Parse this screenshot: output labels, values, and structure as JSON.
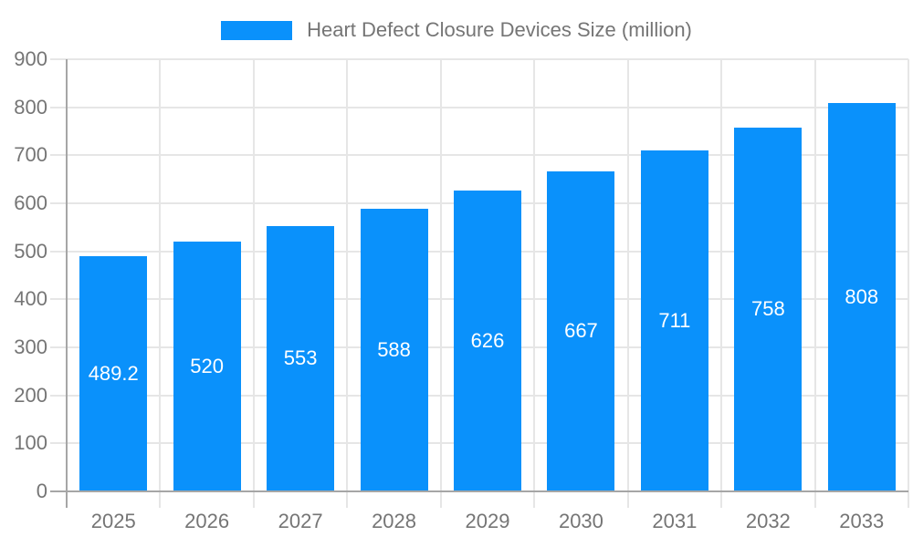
{
  "chart_data": {
    "type": "bar",
    "title": "Heart Defect Closure Devices Size (million)",
    "categories": [
      "2025",
      "2026",
      "2027",
      "2028",
      "2029",
      "2030",
      "2031",
      "2032",
      "2033"
    ],
    "values": [
      489.2,
      520,
      553,
      588,
      626,
      667,
      711,
      758,
      808
    ],
    "bar_labels": [
      "489.2",
      "520",
      "553",
      "588",
      "626",
      "667",
      "711",
      "758",
      "808"
    ],
    "xlabel": "",
    "ylabel": "",
    "ylim": [
      0,
      900
    ],
    "yticks": [
      0,
      100,
      200,
      300,
      400,
      500,
      600,
      700,
      800,
      900
    ],
    "grid": true,
    "legend_position": "top",
    "bar_color": "#0a91fb",
    "value_label_color": "#ffffff",
    "axis_text_color": "#757575",
    "axis_line_color": "#a6a6a6",
    "grid_color": "#e6e6e6",
    "background_color": "#ffffff"
  }
}
